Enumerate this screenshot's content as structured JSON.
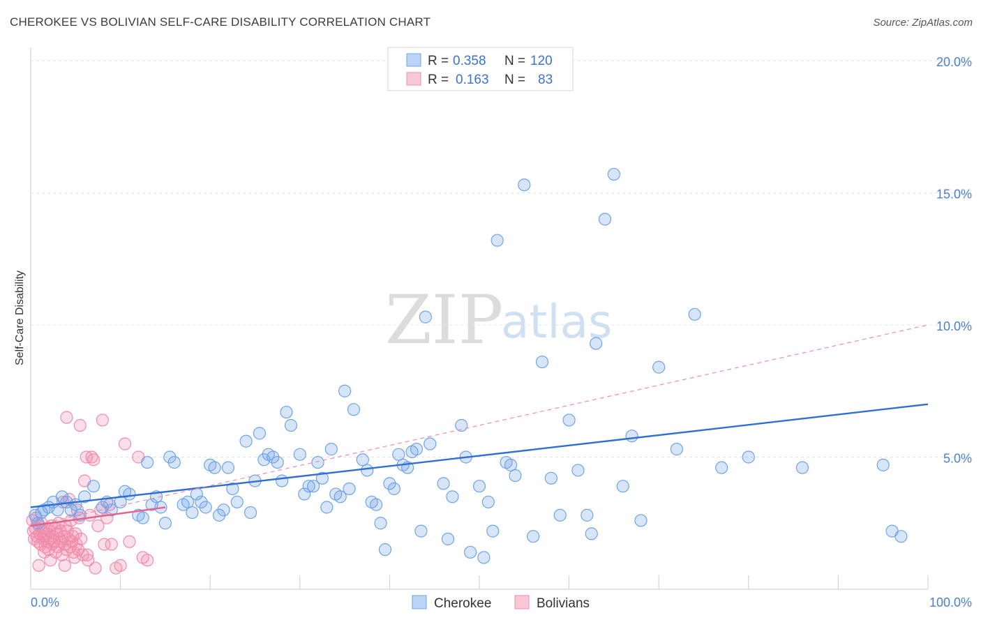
{
  "header": {
    "title": "CHEROKEE VS BOLIVIAN SELF-CARE DISABILITY CORRELATION CHART",
    "source": "Source: ZipAtlas.com"
  },
  "watermark": {
    "zip": "ZIP",
    "atlas": "atlas"
  },
  "legend_top": {
    "rows": [
      {
        "r_label": "R =",
        "r_value": "0.358",
        "n_label": "N =",
        "n_value": "120",
        "color": "#6fa3e8"
      },
      {
        "r_label": "R =",
        "r_value": "0.163",
        "n_label": "N =",
        "n_value": "83",
        "color": "#f08cab"
      }
    ]
  },
  "legend_bottom": {
    "items": [
      {
        "label": "Cherokee",
        "color": "#6fa3e8"
      },
      {
        "label": "Bolivians",
        "color": "#f08cab"
      }
    ]
  },
  "chart_data": {
    "type": "scatter",
    "title": "CHEROKEE VS BOLIVIAN SELF-CARE DISABILITY CORRELATION CHART",
    "xlabel": "",
    "ylabel": "Self-Care Disability",
    "xlim": [
      0,
      100
    ],
    "ylim": [
      0,
      20.5
    ],
    "x_tick_labels": [
      "0.0%",
      "100.0%"
    ],
    "y_ticks": [
      5,
      10,
      15,
      20
    ],
    "y_tick_labels": [
      "5.0%",
      "10.0%",
      "15.0%",
      "20.0%"
    ],
    "grid": true,
    "legend_position": "top-center",
    "series": [
      {
        "name": "Cherokee",
        "color": "#6fa3e8",
        "trend": {
          "x": [
            0,
            100
          ],
          "y": [
            3.1,
            7.0
          ]
        },
        "points": [
          [
            0.5,
            2.8
          ],
          [
            0.8,
            2.5
          ],
          [
            1.2,
            2.9
          ],
          [
            1.5,
            3.0
          ],
          [
            2.0,
            3.1
          ],
          [
            2.5,
            3.3
          ],
          [
            3.0,
            3.0
          ],
          [
            3.5,
            3.5
          ],
          [
            4.0,
            3.3
          ],
          [
            4.5,
            3.0
          ],
          [
            5.0,
            3.2
          ],
          [
            5.5,
            2.8
          ],
          [
            6.0,
            3.5
          ],
          [
            7.0,
            3.9
          ],
          [
            8.0,
            3.1
          ],
          [
            8.5,
            3.3
          ],
          [
            9.0,
            3.0
          ],
          [
            10.0,
            3.3
          ],
          [
            10.5,
            3.7
          ],
          [
            11.0,
            3.6
          ],
          [
            12.0,
            2.8
          ],
          [
            12.5,
            2.7
          ],
          [
            13.0,
            4.8
          ],
          [
            13.5,
            3.2
          ],
          [
            14.0,
            3.5
          ],
          [
            14.5,
            3.1
          ],
          [
            15.0,
            2.5
          ],
          [
            15.5,
            5.0
          ],
          [
            16.0,
            4.8
          ],
          [
            17.0,
            3.2
          ],
          [
            17.5,
            3.3
          ],
          [
            18.0,
            2.9
          ],
          [
            18.5,
            3.6
          ],
          [
            19.0,
            3.3
          ],
          [
            19.5,
            3.1
          ],
          [
            20.0,
            4.7
          ],
          [
            20.5,
            4.6
          ],
          [
            21.0,
            2.8
          ],
          [
            21.5,
            3.0
          ],
          [
            22.0,
            4.6
          ],
          [
            22.5,
            3.8
          ],
          [
            23.0,
            3.3
          ],
          [
            24.0,
            5.6
          ],
          [
            24.5,
            2.9
          ],
          [
            25.0,
            4.1
          ],
          [
            25.5,
            5.9
          ],
          [
            26.0,
            4.9
          ],
          [
            26.5,
            5.1
          ],
          [
            27.0,
            5.0
          ],
          [
            27.5,
            4.8
          ],
          [
            28.0,
            4.1
          ],
          [
            28.5,
            6.7
          ],
          [
            29.0,
            6.2
          ],
          [
            30.0,
            5.1
          ],
          [
            30.5,
            3.6
          ],
          [
            31.0,
            3.9
          ],
          [
            31.5,
            3.9
          ],
          [
            32.0,
            4.8
          ],
          [
            32.5,
            4.2
          ],
          [
            33.0,
            3.1
          ],
          [
            33.5,
            5.3
          ],
          [
            34.0,
            3.6
          ],
          [
            34.5,
            3.5
          ],
          [
            35.0,
            7.5
          ],
          [
            35.5,
            3.8
          ],
          [
            36.0,
            6.8
          ],
          [
            37.0,
            4.9
          ],
          [
            37.5,
            4.5
          ],
          [
            38.0,
            3.3
          ],
          [
            38.5,
            3.2
          ],
          [
            39.0,
            2.5
          ],
          [
            39.5,
            1.5
          ],
          [
            40.0,
            4.0
          ],
          [
            40.5,
            3.8
          ],
          [
            41.0,
            5.1
          ],
          [
            41.5,
            4.7
          ],
          [
            42.0,
            4.6
          ],
          [
            42.5,
            5.2
          ],
          [
            43.0,
            5.3
          ],
          [
            43.5,
            2.2
          ],
          [
            44.0,
            10.3
          ],
          [
            44.5,
            5.5
          ],
          [
            46.0,
            4.0
          ],
          [
            46.5,
            1.9
          ],
          [
            47.0,
            3.5
          ],
          [
            48.0,
            6.2
          ],
          [
            48.5,
            5.0
          ],
          [
            49.0,
            1.4
          ],
          [
            50.0,
            3.9
          ],
          [
            50.5,
            1.2
          ],
          [
            51.0,
            3.3
          ],
          [
            51.5,
            2.2
          ],
          [
            52.0,
            13.2
          ],
          [
            53.0,
            4.8
          ],
          [
            53.5,
            4.7
          ],
          [
            54.0,
            4.3
          ],
          [
            55.0,
            15.3
          ],
          [
            56.0,
            2.0
          ],
          [
            57.0,
            8.6
          ],
          [
            58.0,
            4.2
          ],
          [
            59.0,
            2.8
          ],
          [
            60.0,
            6.4
          ],
          [
            61.0,
            4.5
          ],
          [
            62.0,
            2.8
          ],
          [
            62.5,
            2.1
          ],
          [
            63.0,
            9.3
          ],
          [
            64.0,
            14.0
          ],
          [
            65.0,
            15.7
          ],
          [
            66.0,
            3.9
          ],
          [
            67.0,
            5.8
          ],
          [
            68.0,
            2.6
          ],
          [
            70.0,
            8.4
          ],
          [
            72.0,
            5.3
          ],
          [
            74.0,
            10.4
          ],
          [
            77.0,
            4.6
          ],
          [
            80.0,
            5.0
          ],
          [
            86.0,
            4.6
          ],
          [
            95.0,
            4.7
          ],
          [
            96.0,
            2.2
          ],
          [
            97.0,
            2.0
          ]
        ]
      },
      {
        "name": "Bolivians",
        "color": "#f08cab",
        "trend": {
          "x": [
            0,
            15
          ],
          "y": [
            2.4,
            3.1
          ]
        },
        "dashed_trend": {
          "x": [
            0,
            100
          ],
          "y": [
            2.4,
            10.0
          ]
        },
        "points": [
          [
            0.2,
            2.6
          ],
          [
            0.3,
            2.2
          ],
          [
            0.4,
            1.9
          ],
          [
            0.5,
            2.3
          ],
          [
            0.6,
            2.7
          ],
          [
            0.7,
            2.0
          ],
          [
            0.8,
            1.8
          ],
          [
            0.9,
            2.4
          ],
          [
            1.0,
            2.1
          ],
          [
            1.1,
            1.7
          ],
          [
            1.2,
            2.5
          ],
          [
            1.3,
            2.2
          ],
          [
            1.4,
            1.9
          ],
          [
            1.5,
            2.0
          ],
          [
            1.6,
            1.6
          ],
          [
            1.7,
            2.3
          ],
          [
            1.8,
            2.1
          ],
          [
            1.9,
            1.8
          ],
          [
            2.0,
            1.5
          ],
          [
            2.1,
            2.2
          ],
          [
            2.2,
            1.9
          ],
          [
            2.3,
            2.4
          ],
          [
            2.4,
            1.7
          ],
          [
            2.5,
            2.0
          ],
          [
            2.6,
            1.8
          ],
          [
            2.7,
            2.3
          ],
          [
            2.8,
            1.4
          ],
          [
            2.9,
            2.1
          ],
          [
            3.0,
            1.6
          ],
          [
            3.1,
            2.5
          ],
          [
            3.2,
            1.9
          ],
          [
            3.3,
            2.2
          ],
          [
            3.4,
            1.8
          ],
          [
            3.5,
            1.3
          ],
          [
            3.6,
            3.3
          ],
          [
            3.7,
            2.0
          ],
          [
            3.8,
            1.7
          ],
          [
            3.9,
            2.4
          ],
          [
            4.0,
            1.5
          ],
          [
            4.1,
            2.2
          ],
          [
            4.2,
            1.9
          ],
          [
            4.3,
            3.4
          ],
          [
            4.4,
            1.6
          ],
          [
            4.5,
            2.6
          ],
          [
            4.6,
            1.8
          ],
          [
            4.7,
            2.0
          ],
          [
            4.8,
            1.4
          ],
          [
            4.9,
            1.2
          ],
          [
            5.0,
            2.1
          ],
          [
            5.1,
            1.7
          ],
          [
            5.2,
            3.0
          ],
          [
            5.3,
            1.5
          ],
          [
            5.4,
            2.7
          ],
          [
            5.5,
            6.2
          ],
          [
            5.6,
            1.9
          ],
          [
            5.8,
            1.3
          ],
          [
            6.0,
            4.1
          ],
          [
            6.2,
            5.0
          ],
          [
            6.4,
            1.1
          ],
          [
            6.6,
            2.8
          ],
          [
            6.8,
            5.0
          ],
          [
            7.0,
            4.9
          ],
          [
            7.2,
            0.8
          ],
          [
            7.5,
            2.4
          ],
          [
            7.8,
            3.0
          ],
          [
            8.0,
            6.4
          ],
          [
            8.2,
            1.7
          ],
          [
            8.5,
            2.7
          ],
          [
            8.8,
            3.2
          ],
          [
            9.0,
            1.7
          ],
          [
            9.5,
            0.8
          ],
          [
            10.0,
            0.9
          ],
          [
            10.5,
            5.5
          ],
          [
            11.0,
            1.8
          ],
          [
            12.0,
            5.0
          ],
          [
            12.5,
            1.2
          ],
          [
            13.0,
            1.1
          ],
          [
            4.0,
            6.5
          ],
          [
            3.8,
            0.9
          ],
          [
            2.2,
            1.1
          ],
          [
            1.5,
            1.4
          ],
          [
            0.9,
            0.9
          ],
          [
            6.3,
            1.3
          ]
        ]
      }
    ]
  }
}
